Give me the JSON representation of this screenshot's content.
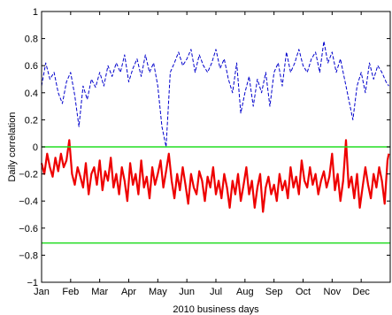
{
  "chart_data": {
    "type": "line",
    "xlabel": "2010 business days",
    "ylabel": "Daily correlation",
    "ylim": [
      -1,
      1
    ],
    "yticks": [
      -1,
      -0.8,
      -0.6,
      -0.4,
      -0.2,
      0,
      0.2,
      0.4,
      0.6,
      0.8,
      1
    ],
    "ytick_labels": [
      "−1",
      "−0.8",
      "−0.6",
      "−0.4",
      "−0.2",
      "0",
      "0.2",
      "0.4",
      "0.6",
      "0.8",
      "1"
    ],
    "xlim": [
      0,
      252
    ],
    "xticks": [
      0,
      21,
      42,
      63,
      84,
      105,
      126,
      147,
      168,
      189,
      210,
      231
    ],
    "xtick_labels": [
      "Jan",
      "Feb",
      "Mar",
      "Apr",
      "May",
      "Jun",
      "Jul",
      "Aug",
      "Sep",
      "Oct",
      "Nov",
      "Dec"
    ],
    "grid": false,
    "hlines": [
      {
        "y": 0,
        "color": "#22dd22"
      },
      {
        "y": -0.71,
        "color": "#22dd22"
      }
    ],
    "series": [
      {
        "style": "dashed",
        "color": "#0000cc",
        "x": [
          0,
          3,
          6,
          9,
          12,
          15,
          18,
          21,
          24,
          27,
          30,
          33,
          36,
          39,
          42,
          45,
          48,
          51,
          54,
          57,
          60,
          63,
          66,
          69,
          72,
          75,
          78,
          81,
          84,
          87,
          90,
          93,
          96,
          99,
          102,
          105,
          108,
          111,
          114,
          117,
          120,
          123,
          126,
          129,
          132,
          135,
          138,
          141,
          144,
          147,
          150,
          153,
          156,
          159,
          162,
          165,
          168,
          171,
          174,
          177,
          180,
          183,
          186,
          189,
          192,
          195,
          198,
          201,
          204,
          207,
          210,
          213,
          216,
          219,
          222,
          225,
          228,
          231,
          234,
          237,
          240,
          243,
          246,
          249,
          251
        ],
        "values": [
          0.45,
          0.62,
          0.5,
          0.55,
          0.4,
          0.32,
          0.48,
          0.55,
          0.38,
          0.15,
          0.45,
          0.35,
          0.5,
          0.44,
          0.55,
          0.45,
          0.6,
          0.52,
          0.62,
          0.55,
          0.68,
          0.48,
          0.58,
          0.65,
          0.52,
          0.68,
          0.55,
          0.62,
          0.45,
          0.15,
          0.0,
          0.55,
          0.62,
          0.7,
          0.6,
          0.65,
          0.72,
          0.55,
          0.68,
          0.6,
          0.55,
          0.62,
          0.72,
          0.58,
          0.65,
          0.5,
          0.4,
          0.62,
          0.25,
          0.4,
          0.52,
          0.3,
          0.5,
          0.4,
          0.55,
          0.3,
          0.55,
          0.62,
          0.45,
          0.7,
          0.55,
          0.62,
          0.72,
          0.6,
          0.55,
          0.65,
          0.7,
          0.55,
          0.78,
          0.62,
          0.7,
          0.55,
          0.65,
          0.5,
          0.35,
          0.2,
          0.45,
          0.55,
          0.4,
          0.62,
          0.5,
          0.6,
          0.55,
          0.48,
          0.45
        ]
      },
      {
        "style": "solid",
        "color": "#ee0000",
        "x": [
          0,
          2,
          4,
          6,
          8,
          10,
          12,
          14,
          16,
          18,
          20,
          22,
          24,
          26,
          28,
          30,
          32,
          34,
          36,
          38,
          40,
          42,
          44,
          46,
          48,
          50,
          52,
          54,
          56,
          58,
          60,
          62,
          64,
          66,
          68,
          70,
          72,
          74,
          76,
          78,
          80,
          82,
          84,
          86,
          88,
          90,
          92,
          94,
          96,
          98,
          100,
          102,
          104,
          106,
          108,
          110,
          112,
          114,
          116,
          118,
          120,
          122,
          124,
          126,
          128,
          130,
          132,
          134,
          136,
          138,
          140,
          142,
          144,
          146,
          148,
          150,
          152,
          154,
          156,
          158,
          160,
          162,
          164,
          166,
          168,
          170,
          172,
          174,
          176,
          178,
          180,
          182,
          184,
          186,
          188,
          190,
          192,
          194,
          196,
          198,
          200,
          202,
          204,
          206,
          208,
          210,
          212,
          214,
          216,
          218,
          220,
          222,
          224,
          226,
          228,
          230,
          232,
          234,
          236,
          238,
          240,
          242,
          244,
          246,
          248,
          250,
          251
        ],
        "values": [
          -0.12,
          -0.2,
          -0.05,
          -0.15,
          -0.22,
          -0.08,
          -0.18,
          -0.05,
          -0.15,
          -0.1,
          0.05,
          -0.2,
          -0.28,
          -0.15,
          -0.22,
          -0.3,
          -0.12,
          -0.35,
          -0.2,
          -0.15,
          -0.28,
          -0.1,
          -0.32,
          -0.18,
          -0.25,
          -0.08,
          -0.3,
          -0.2,
          -0.35,
          -0.15,
          -0.25,
          -0.4,
          -0.12,
          -0.28,
          -0.2,
          -0.35,
          -0.1,
          -0.3,
          -0.22,
          -0.38,
          -0.15,
          -0.28,
          -0.2,
          -0.1,
          -0.3,
          -0.18,
          -0.05,
          -0.25,
          -0.38,
          -0.2,
          -0.32,
          -0.15,
          -0.28,
          -0.42,
          -0.2,
          -0.3,
          -0.35,
          -0.18,
          -0.25,
          -0.4,
          -0.22,
          -0.3,
          -0.15,
          -0.35,
          -0.25,
          -0.38,
          -0.2,
          -0.3,
          -0.45,
          -0.25,
          -0.35,
          -0.2,
          -0.4,
          -0.28,
          -0.15,
          -0.35,
          -0.25,
          -0.45,
          -0.3,
          -0.2,
          -0.48,
          -0.3,
          -0.22,
          -0.35,
          -0.28,
          -0.4,
          -0.2,
          -0.32,
          -0.25,
          -0.38,
          -0.15,
          -0.3,
          -0.22,
          -0.35,
          -0.1,
          -0.25,
          -0.3,
          -0.15,
          -0.28,
          -0.2,
          -0.35,
          -0.25,
          -0.18,
          -0.3,
          -0.22,
          -0.05,
          -0.32,
          -0.2,
          -0.4,
          -0.25,
          0.05,
          -0.3,
          -0.22,
          -0.38,
          -0.2,
          -0.45,
          -0.3,
          -0.15,
          -0.28,
          -0.38,
          -0.2,
          -0.3,
          -0.15,
          -0.25,
          -0.42,
          -0.1,
          -0.05
        ]
      }
    ]
  }
}
